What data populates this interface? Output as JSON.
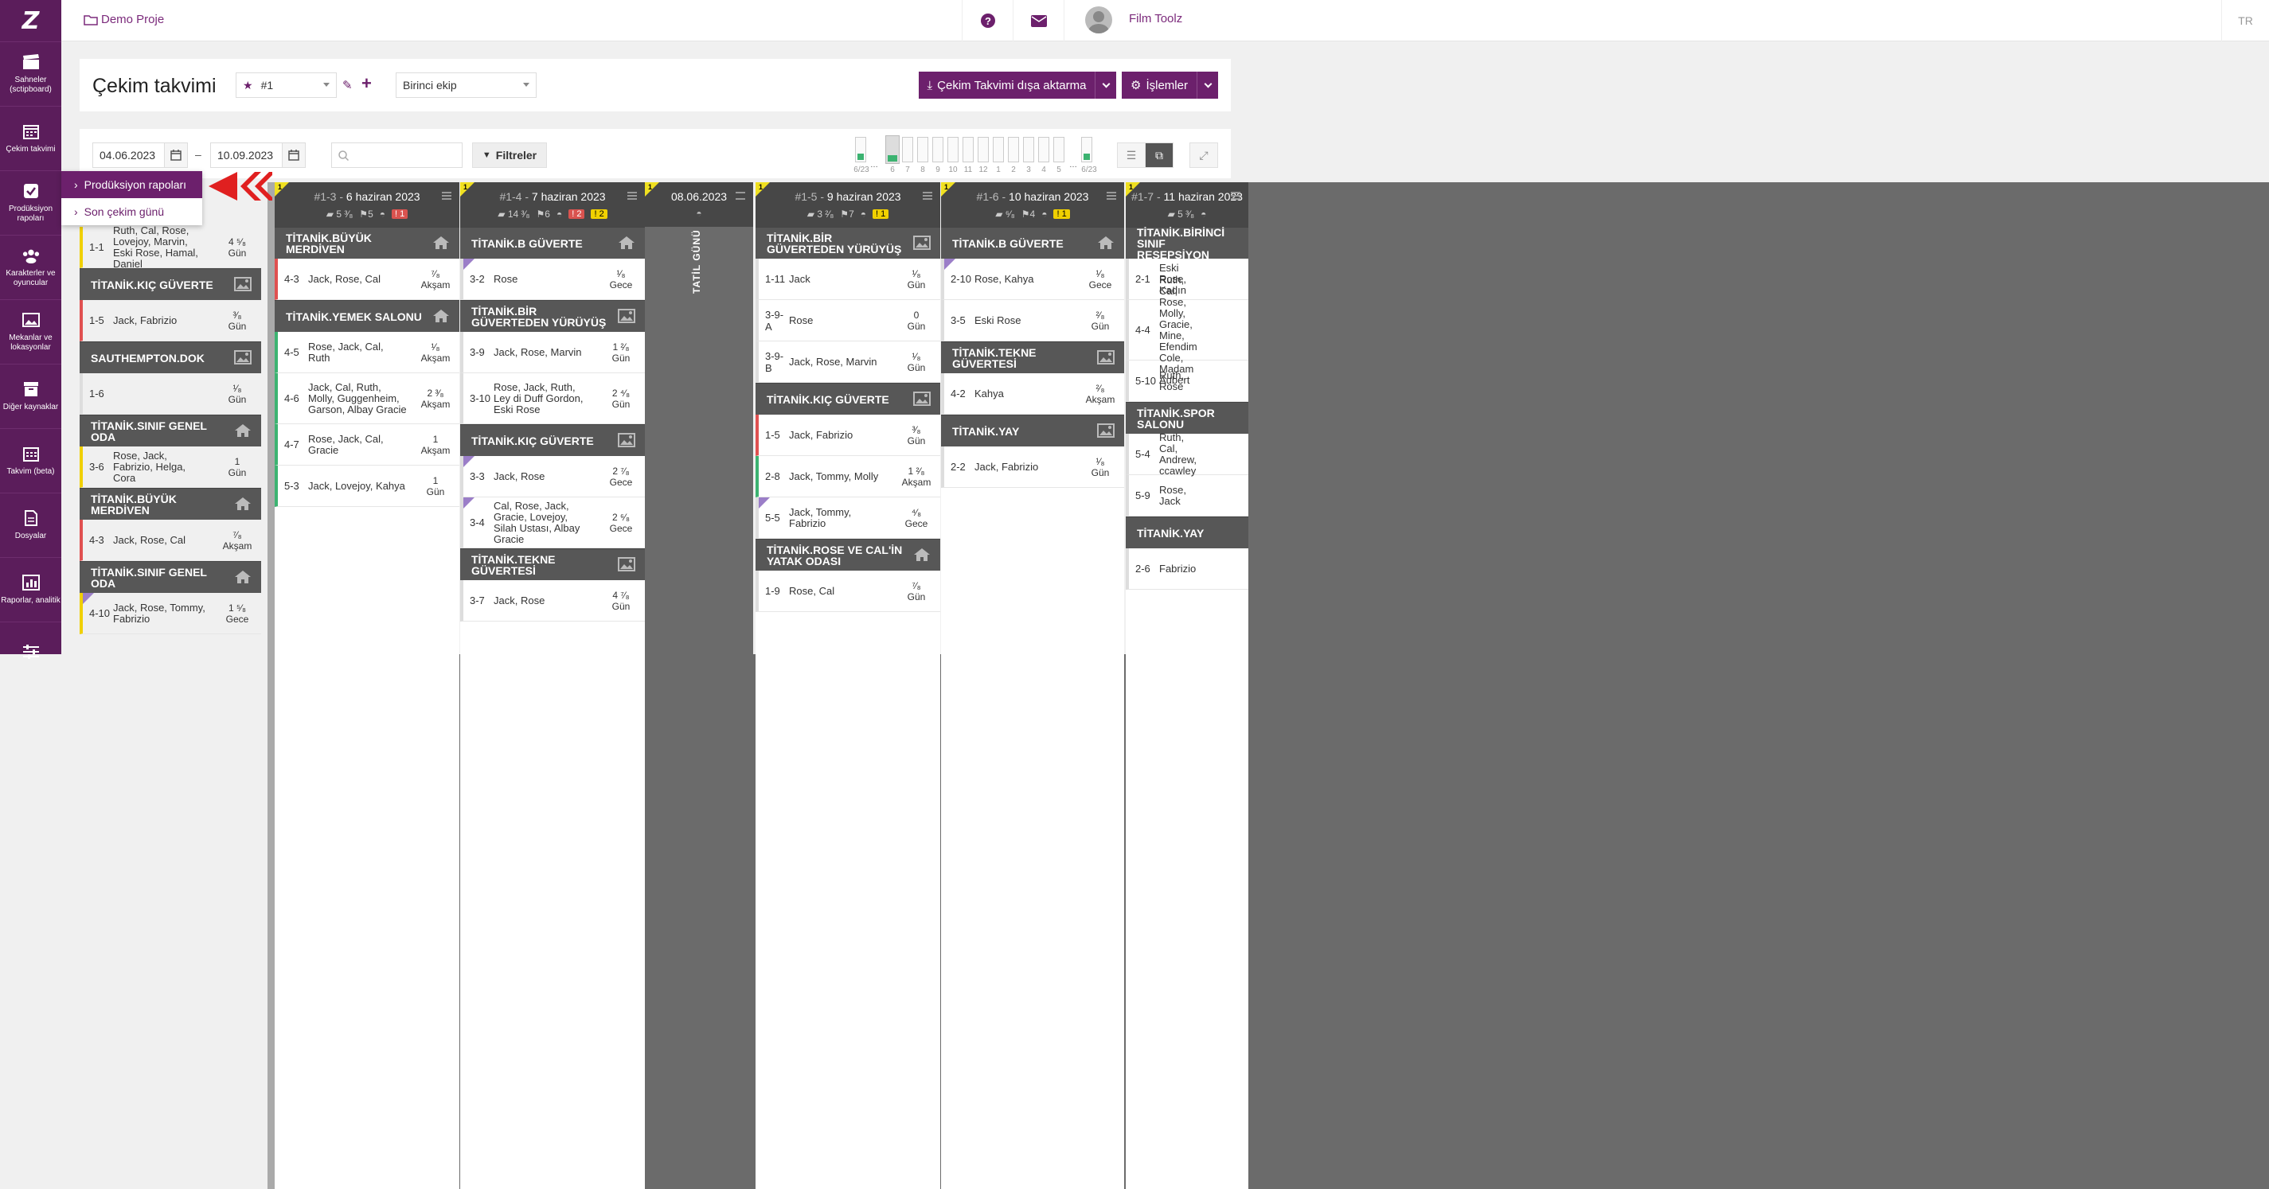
{
  "sidebar": {
    "logo": "Z",
    "items": [
      {
        "label": "Sahneler (sctipboard)",
        "icon": "clapper-icon"
      },
      {
        "label": "Çekim takvimi",
        "icon": "calendar-icon"
      },
      {
        "label": "Prodüksiyon rapoları",
        "icon": "checkbox-icon"
      },
      {
        "label": "Karakterler ve oyuncular",
        "icon": "users-icon"
      },
      {
        "label": "Mekanlar ve lokasyonlar",
        "icon": "image-icon"
      },
      {
        "label": "Diğer kaynaklar",
        "icon": "archive-icon"
      },
      {
        "label": "Takvim (beta)",
        "icon": "calendar-grid-icon"
      },
      {
        "label": "Dosyalar",
        "icon": "file-icon"
      },
      {
        "label": "Raporlar, analitik",
        "icon": "chart-icon"
      },
      {
        "label": "",
        "icon": "sliders-icon"
      }
    ]
  },
  "topbar": {
    "project": "Demo Proje",
    "user": "Film Toolz",
    "lang": "TR"
  },
  "header": {
    "title": "Çekim takvimi",
    "schedule_select": "#1",
    "crew_select": "Birinci ekip",
    "export_label": "Çekim Takvimi dışa aktarma",
    "actions_label": "İşlemler"
  },
  "filters": {
    "date_from": "04.06.2023",
    "date_to": "10.09.2023",
    "search_placeholder": "",
    "filter_label": "Filtreler",
    "dash": "–"
  },
  "minibars": {
    "labels": [
      "6/23",
      "…",
      "6",
      "7",
      "8",
      "9",
      "10",
      "11",
      "12",
      "1",
      "2",
      "3",
      "4",
      "5",
      "…",
      "6/23"
    ]
  },
  "popup": {
    "items": [
      "Prodüksiyon rapoları",
      "Son çekim günü"
    ]
  },
  "colors": {
    "purple": "#6c206c",
    "sidebar": "#5b1d5b",
    "header_dark": "#474747",
    "location": "#575757"
  },
  "columns": [
    {
      "flag": "",
      "title_id": "",
      "title_date": "",
      "stats": "",
      "locations": [
        {
          "name": "",
          "scenes": [
            {
              "no": "1-1",
              "chars": "Ruth, Cal, Rose, Lovejoy, Marvin, Eski Rose, Hamal, Daniel",
              "len": "4 ⁵⁄₈",
              "tod": "Gün",
              "color": "#f0d000"
            }
          ]
        },
        {
          "name": "TİTANİK.KIÇ GÜVERTE",
          "icon": "image",
          "scenes": [
            {
              "no": "1-5",
              "chars": "Jack, Fabrizio",
              "len": "³⁄₈",
              "tod": "Gün",
              "color": "#e05050"
            }
          ]
        },
        {
          "name": "SAUTHEMPTON.DOK",
          "icon": "image",
          "scenes": [
            {
              "no": "1-6",
              "chars": "",
              "len": "¹⁄₈",
              "tod": "Gün",
              "color": "#fff"
            }
          ]
        },
        {
          "name": "TİTANİK.SINIF GENEL ODA",
          "icon": "home",
          "scenes": [
            {
              "no": "3-6",
              "chars": "Rose, Jack, Fabrizio, Helga, Cora",
              "len": "1",
              "tod": "Gün",
              "color": "#f0d000"
            }
          ]
        },
        {
          "name": "TİTANİK.BÜYÜK MERDİVEN",
          "icon": "home",
          "scenes": [
            {
              "no": "4-3",
              "chars": "Jack, Rose, Cal",
              "len": "⁷⁄₈",
              "tod": "Akşam",
              "color": "#e05050"
            }
          ]
        },
        {
          "name": "TİTANİK.SINIF GENEL ODA",
          "icon": "home",
          "scenes": [
            {
              "no": "4-10",
              "chars": "Jack, Rose, Tommy, Fabrizio",
              "len": "1 ⁵⁄₈",
              "tod": "Gece",
              "color": "#f0d000",
              "tri": true
            }
          ]
        }
      ]
    },
    {
      "flag": "1",
      "title_id": "#1-3",
      "title_date": "6 haziran 2023",
      "stats": {
        "pages": "5 ³⁄₈",
        "cast": "5",
        "red": "1",
        "yellow": ""
      },
      "locations": [
        {
          "name": "TİTANİK.BÜYÜK MERDİVEN",
          "icon": "home",
          "scenes": [
            {
              "no": "4-3",
              "chars": "Jack, Rose, Cal",
              "len": "⁷⁄₈",
              "tod": "Akşam",
              "color": "#e05050"
            }
          ]
        },
        {
          "name": "TİTANİK.YEMEK SALONU",
          "icon": "home",
          "scenes": [
            {
              "no": "4-5",
              "chars": "Rose, Jack, Cal, Ruth",
              "len": "¹⁄₈",
              "tod": "Akşam",
              "color": "#3cb371"
            },
            {
              "no": "4-6",
              "chars": "Jack, Cal, Ruth, Molly, Guggenheim, Garson, Albay Gracie",
              "len": "2 ³⁄₈",
              "tod": "Akşam",
              "color": "#3cb371",
              "h": 64
            },
            {
              "no": "4-7",
              "chars": "Rose, Jack, Cal, Gracie",
              "len": "1",
              "tod": "Akşam",
              "color": "#3cb371"
            },
            {
              "no": "5-3",
              "chars": "Jack, Lovejoy, Kahya",
              "len": "1",
              "tod": "Gün",
              "color": "#3cb371"
            }
          ]
        }
      ]
    },
    {
      "flag": "1",
      "title_id": "#1-4",
      "title_date": "7 haziran 2023",
      "stats": {
        "pages": "14 ³⁄₈",
        "cast": "6",
        "red": "2",
        "yellow": "2"
      },
      "locations": [
        {
          "name": "TİTANİK.B GÜVERTE",
          "icon": "home",
          "scenes": [
            {
              "no": "3-2",
              "chars": "Rose",
              "len": "¹⁄₈",
              "tod": "Gece",
              "color": "#fff",
              "tri": true
            }
          ]
        },
        {
          "name": "TİTANİK.BİR GÜVERTEDEN YÜRÜYÜŞ",
          "icon": "image",
          "scenes": [
            {
              "no": "3-9",
              "chars": "Jack, Rose, Marvin",
              "len": "1 ²⁄₈",
              "tod": "Gün",
              "color": "#fff"
            },
            {
              "no": "3-10",
              "chars": "Rose, Jack, Ruth, Ley di Duff Gordon, Eski Rose",
              "len": "2 ⁴⁄₈",
              "tod": "Gün",
              "color": "#fff",
              "h": 64
            }
          ]
        },
        {
          "name": "TİTANİK.KIÇ GÜVERTE",
          "icon": "image",
          "scenes": [
            {
              "no": "3-3",
              "chars": "Jack, Rose",
              "len": "2 ⁷⁄₈",
              "tod": "Gece",
              "color": "#fff",
              "tri": true
            },
            {
              "no": "3-4",
              "chars": "Cal, Rose, Jack, Gracie, Lovejoy, Silah Ustası, Albay Gracie",
              "len": "2 ⁶⁄₈",
              "tod": "Gece",
              "color": "#fff",
              "tri": true,
              "h": 64
            }
          ]
        },
        {
          "name": "TİTANİK.TEKNE GÜVERTESİ",
          "icon": "image",
          "scenes": [
            {
              "no": "3-7",
              "chars": "Jack, Rose",
              "len": "4 ⁷⁄₈",
              "tod": "Gün",
              "color": "#fff"
            }
          ]
        }
      ]
    },
    {
      "holiday": true,
      "title_date": "08.06.2023",
      "label": "TATİL GÜNÜ"
    },
    {
      "flag": "1",
      "title_id": "#1-5",
      "title_date": "9 haziran 2023",
      "stats": {
        "pages": "3 ²⁄₈",
        "cast": "7",
        "red": "",
        "yellow": "1"
      },
      "locations": [
        {
          "name": "TİTANİK.BİR GÜVERTEDEN YÜRÜYÜŞ",
          "icon": "image",
          "scenes": [
            {
              "no": "1-11",
              "chars": "Jack",
              "len": "¹⁄₈",
              "tod": "Gün",
              "color": "#fff"
            },
            {
              "no": "3-9-A",
              "chars": "Rose",
              "len": "0",
              "tod": "Gün",
              "color": "#fff"
            },
            {
              "no": "3-9-B",
              "chars": "Jack, Rose, Marvin",
              "len": "¹⁄₈",
              "tod": "Gün",
              "color": "#fff"
            }
          ]
        },
        {
          "name": "TİTANİK.KIÇ GÜVERTE",
          "icon": "image",
          "scenes": [
            {
              "no": "1-5",
              "chars": "Jack, Fabrizio",
              "len": "³⁄₈",
              "tod": "Gün",
              "color": "#e05050"
            },
            {
              "no": "2-8",
              "chars": "Jack, Tommy, Molly",
              "len": "1 ²⁄₈",
              "tod": "Akşam",
              "color": "#3cb371"
            },
            {
              "no": "5-5",
              "chars": "Jack, Tommy, Fabrizio",
              "len": "⁴⁄₈",
              "tod": "Gece",
              "color": "#fff",
              "tri": true
            }
          ]
        },
        {
          "name": "TİTANİK.ROSE VE CAL'İN YATAK ODASI",
          "icon": "home",
          "scenes": [
            {
              "no": "1-9",
              "chars": "Rose, Cal",
              "len": "⁷⁄₈",
              "tod": "Gün",
              "color": "#fff"
            }
          ]
        }
      ]
    },
    {
      "flag": "1",
      "title_id": "#1-6",
      "title_date": "10 haziran 2023",
      "stats": {
        "pages": "⁶⁄₈",
        "cast": "4",
        "red": "",
        "yellow": "1"
      },
      "locations": [
        {
          "name": "TİTANİK.B GÜVERTE",
          "icon": "home",
          "scenes": [
            {
              "no": "2-10",
              "chars": "Rose, Kahya",
              "len": "¹⁄₈",
              "tod": "Gece",
              "color": "#fff",
              "tri": true
            },
            {
              "no": "3-5",
              "chars": "Eski Rose",
              "len": "²⁄₈",
              "tod": "Gün",
              "color": "#fff"
            }
          ]
        },
        {
          "name": "TİTANİK.TEKNE GÜVERTESİ",
          "icon": "image",
          "scenes": [
            {
              "no": "4-2",
              "chars": "Kahya",
              "len": "²⁄₈",
              "tod": "Akşam",
              "color": "#fff"
            }
          ]
        },
        {
          "name": "TİTANİK.YAY",
          "icon": "image",
          "scenes": [
            {
              "no": "2-2",
              "chars": "Jack, Fabrizio",
              "len": "¹⁄₈",
              "tod": "Gün",
              "color": "#fff"
            }
          ]
        }
      ]
    },
    {
      "flag": "1",
      "title_id": "#1-7",
      "title_date": "11 haziran 2023",
      "stats": {
        "pages": "5 ³⁄₈",
        "cast": "",
        "red": "",
        "yellow": ""
      },
      "locations": [
        {
          "name": "TİTANİK.BİRİNCİ SINIF RESEPSİYON",
          "icon": "",
          "scenes": [
            {
              "no": "2-1",
              "chars": "Eski Rose, Kadın",
              "len": "",
              "tod": "",
              "color": "#fff"
            },
            {
              "no": "4-4",
              "chars": "Ruth, Cal, Rose, Molly, Gracie, Mine, Efendim Cole, Madam Aubert",
              "len": "",
              "tod": "",
              "color": "#fff",
              "h": 76
            },
            {
              "no": "5-10",
              "chars": "Ruth, Rose",
              "len": "",
              "tod": "",
              "color": "#fff"
            }
          ]
        },
        {
          "name": "TİTANİK.SPOR SALONU",
          "icon": "",
          "scenes": [
            {
              "no": "5-4",
              "chars": "Ruth, Cal, Andrew, ccawley",
              "len": "",
              "tod": "",
              "color": "#fff"
            },
            {
              "no": "5-9",
              "chars": "Rose, Jack",
              "len": "",
              "tod": "",
              "color": "#fff"
            }
          ]
        },
        {
          "name": "TİTANİK.YAY",
          "icon": "",
          "scenes": [
            {
              "no": "2-6",
              "chars": "Fabrizio",
              "len": "",
              "tod": "",
              "color": "#fff"
            }
          ]
        }
      ]
    }
  ]
}
